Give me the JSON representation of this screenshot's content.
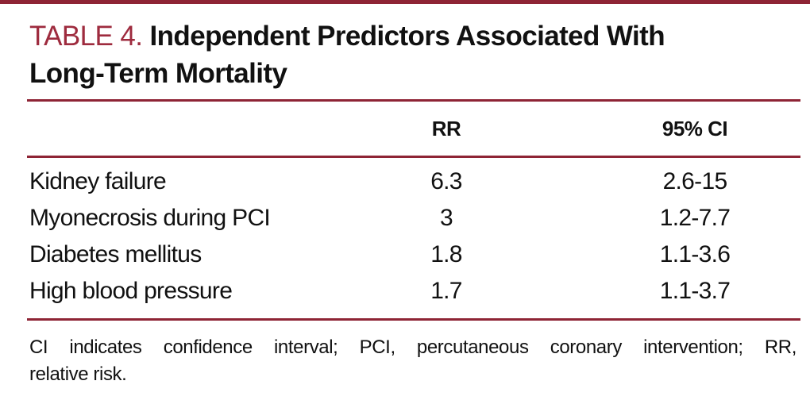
{
  "colors": {
    "accent_maroon": "#8e2435",
    "title_label_red": "#9e2b3e",
    "text_black": "#111111",
    "background": "#ffffff"
  },
  "title": {
    "label": "TABLE 4.",
    "text_line1": "Independent Predictors Associated With",
    "text_line2": "Long-Term Mortality"
  },
  "table": {
    "columns": {
      "rr": "RR",
      "ci": "95% CI"
    },
    "rows": [
      {
        "predictor": "Kidney failure",
        "rr": "6.3",
        "ci": "2.6-15"
      },
      {
        "predictor": "Myonecrosis during PCI",
        "rr": "3",
        "ci": "1.2-7.7"
      },
      {
        "predictor": "Diabetes mellitus",
        "rr": "1.8",
        "ci": "1.1-3.6"
      },
      {
        "predictor": "High blood pressure",
        "rr": "1.7",
        "ci": "1.1-3.7"
      }
    ]
  },
  "footnote": {
    "line1": "CI indicates confidence interval; PCI, percutaneous coronary intervention; RR,",
    "line2": "relative risk."
  }
}
